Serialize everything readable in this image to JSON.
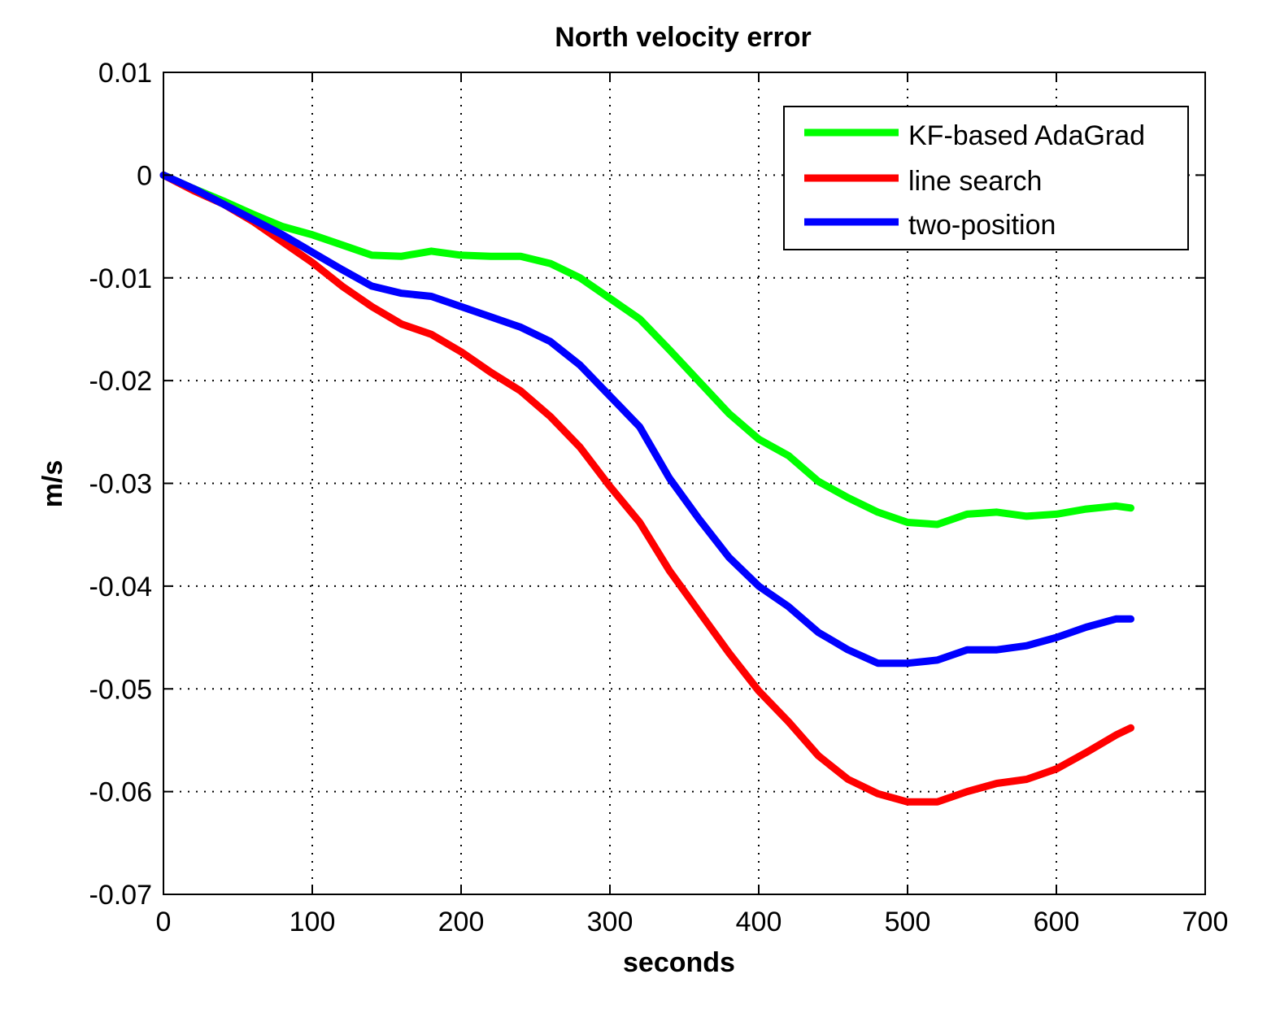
{
  "chart_data": {
    "type": "line",
    "title": "North velocity error",
    "xlabel": "seconds",
    "ylabel": "m/s",
    "xlim": [
      0,
      700
    ],
    "ylim": [
      -0.07,
      0.01
    ],
    "xticks": [
      0,
      100,
      200,
      300,
      400,
      500,
      600,
      700
    ],
    "xtick_labels": [
      "0",
      "100",
      "200",
      "300",
      "400",
      "500",
      "600",
      "700"
    ],
    "yticks": [
      0.01,
      0,
      -0.01,
      -0.02,
      -0.03,
      -0.04,
      -0.05,
      -0.06,
      -0.07
    ],
    "ytick_labels": [
      "0.01",
      "0",
      "-0.01",
      "-0.02",
      "-0.03",
      "-0.04",
      "-0.05",
      "-0.06",
      "-0.07"
    ],
    "grid": true,
    "legend_position": "top-right",
    "series": [
      {
        "name": "KF-based AdaGrad",
        "color": "#00ff00",
        "x": [
          0,
          20,
          40,
          60,
          80,
          100,
          120,
          140,
          160,
          180,
          200,
          220,
          240,
          260,
          280,
          300,
          320,
          340,
          360,
          380,
          400,
          420,
          440,
          460,
          480,
          500,
          520,
          540,
          560,
          580,
          600,
          620,
          640,
          650
        ],
        "y": [
          0,
          -0.0013,
          -0.0025,
          -0.0038,
          -0.005,
          -0.0058,
          -0.0068,
          -0.0078,
          -0.0079,
          -0.0074,
          -0.0078,
          -0.0079,
          -0.0079,
          -0.0086,
          -0.01,
          -0.012,
          -0.014,
          -0.017,
          -0.0201,
          -0.0232,
          -0.0257,
          -0.0273,
          -0.0298,
          -0.0314,
          -0.0328,
          -0.0338,
          -0.034,
          -0.033,
          -0.0328,
          -0.0332,
          -0.033,
          -0.0325,
          -0.0322,
          -0.0324
        ]
      },
      {
        "name": "line search",
        "color": "#ff0000",
        "x": [
          0,
          20,
          40,
          60,
          80,
          100,
          120,
          140,
          160,
          180,
          200,
          220,
          240,
          260,
          280,
          300,
          320,
          340,
          360,
          380,
          400,
          420,
          440,
          460,
          480,
          500,
          520,
          540,
          560,
          580,
          600,
          620,
          640,
          650
        ],
        "y": [
          0,
          -0.0015,
          -0.0028,
          -0.0045,
          -0.0065,
          -0.0085,
          -0.0108,
          -0.0128,
          -0.0145,
          -0.0155,
          -0.0172,
          -0.0192,
          -0.021,
          -0.0235,
          -0.0265,
          -0.0303,
          -0.0338,
          -0.0385,
          -0.0425,
          -0.0465,
          -0.0502,
          -0.0532,
          -0.0565,
          -0.0588,
          -0.0602,
          -0.061,
          -0.061,
          -0.06,
          -0.0592,
          -0.0588,
          -0.0578,
          -0.0562,
          -0.0545,
          -0.0538
        ]
      },
      {
        "name": "two-position",
        "color": "#0000ff",
        "x": [
          0,
          20,
          40,
          60,
          80,
          100,
          120,
          140,
          160,
          180,
          200,
          220,
          240,
          260,
          280,
          300,
          320,
          340,
          360,
          380,
          400,
          420,
          440,
          460,
          480,
          500,
          520,
          540,
          560,
          580,
          600,
          620,
          640,
          650
        ],
        "y": [
          0,
          -0.0013,
          -0.0028,
          -0.0043,
          -0.0058,
          -0.0075,
          -0.0092,
          -0.0108,
          -0.0115,
          -0.0118,
          -0.0128,
          -0.0138,
          -0.0148,
          -0.0162,
          -0.0185,
          -0.0215,
          -0.0245,
          -0.0295,
          -0.0335,
          -0.0372,
          -0.04,
          -0.042,
          -0.0445,
          -0.0462,
          -0.0475,
          -0.0475,
          -0.0472,
          -0.0462,
          -0.0462,
          -0.0458,
          -0.045,
          -0.044,
          -0.0432,
          -0.0432
        ]
      }
    ]
  }
}
